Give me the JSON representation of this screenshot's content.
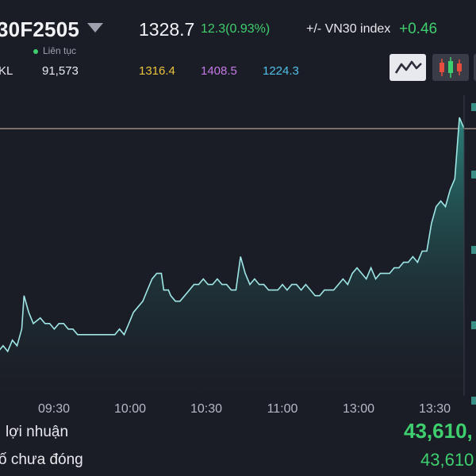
{
  "header": {
    "symbol": "30F2505",
    "last_price": "1328.7",
    "change": "12.3(0.93%)",
    "index_label": "+/- VN30 index",
    "index_change": "+0.46",
    "session": "Liên tục",
    "volume_label": "KL",
    "volume": "91,573",
    "reference": "1316.4",
    "ceiling": "1408.5",
    "floor": "1224.3"
  },
  "chart_type_buttons": [
    "line-chart-icon",
    "candlestick-chart-icon"
  ],
  "colors": {
    "up": "#3ecf6e",
    "reference": "#e8c33a",
    "ceiling": "#c579e6",
    "floor": "#4fc1e9",
    "line": "#9fe6e6",
    "background": "#1b1d26"
  },
  "chart_data": {
    "type": "area",
    "x_ticks": [
      "09:30",
      "10:00",
      "10:30",
      "11:00",
      "13:00",
      "13:30"
    ],
    "reference_line": 1328,
    "ylim": [
      1280,
      1334
    ],
    "x_range": [
      0,
      100
    ],
    "series": [
      {
        "values": [
          [
            0,
            1288
          ],
          [
            1,
            1289
          ],
          [
            2,
            1288
          ],
          [
            3,
            1290
          ],
          [
            4,
            1289
          ],
          [
            5,
            1292
          ],
          [
            5.5,
            1298
          ],
          [
            6.5,
            1295
          ],
          [
            7.5,
            1293
          ],
          [
            9,
            1294
          ],
          [
            10,
            1293
          ],
          [
            11,
            1293
          ],
          [
            12,
            1292
          ],
          [
            13,
            1293
          ],
          [
            14,
            1293
          ],
          [
            15,
            1292
          ],
          [
            16,
            1292
          ],
          [
            17,
            1291
          ],
          [
            18,
            1291
          ],
          [
            19,
            1291
          ],
          [
            20,
            1291
          ],
          [
            21,
            1291
          ],
          [
            22,
            1291
          ],
          [
            23,
            1291
          ],
          [
            24,
            1291
          ],
          [
            25,
            1291
          ],
          [
            26,
            1292
          ],
          [
            27,
            1291
          ],
          [
            28,
            1293
          ],
          [
            29,
            1295
          ],
          [
            30,
            1296
          ],
          [
            31,
            1297
          ],
          [
            32,
            1299
          ],
          [
            33,
            1301
          ],
          [
            34,
            1302
          ],
          [
            35,
            1302
          ],
          [
            35.5,
            1299
          ],
          [
            36.5,
            1299
          ],
          [
            37,
            1298
          ],
          [
            38,
            1297
          ],
          [
            39,
            1297
          ],
          [
            40,
            1298
          ],
          [
            41,
            1299
          ],
          [
            42,
            1300
          ],
          [
            43,
            1300
          ],
          [
            44,
            1301
          ],
          [
            45,
            1300
          ],
          [
            46,
            1300
          ],
          [
            47,
            1301
          ],
          [
            48,
            1300
          ],
          [
            49,
            1300
          ],
          [
            50,
            1299
          ],
          [
            51,
            1299
          ],
          [
            52,
            1305
          ],
          [
            53,
            1302
          ],
          [
            54,
            1300
          ],
          [
            55,
            1301
          ],
          [
            56,
            1300
          ],
          [
            57,
            1300
          ],
          [
            58,
            1299
          ],
          [
            59,
            1299
          ],
          [
            60,
            1299
          ],
          [
            61,
            1300
          ],
          [
            62,
            1299
          ],
          [
            63,
            1300
          ],
          [
            64,
            1300
          ],
          [
            65,
            1299
          ],
          [
            66,
            1300
          ],
          [
            67,
            1299
          ],
          [
            68,
            1298
          ],
          [
            69,
            1298
          ],
          [
            70,
            1299
          ],
          [
            71,
            1299
          ],
          [
            72,
            1299
          ],
          [
            73,
            1300
          ],
          [
            74,
            1301
          ],
          [
            75,
            1300
          ],
          [
            76,
            1302
          ],
          [
            77,
            1303
          ],
          [
            78,
            1302
          ],
          [
            79,
            1301
          ],
          [
            80,
            1303
          ],
          [
            81,
            1301
          ],
          [
            82,
            1302
          ],
          [
            83,
            1302
          ],
          [
            84,
            1302
          ],
          [
            85,
            1303
          ],
          [
            86,
            1303
          ],
          [
            87,
            1304
          ],
          [
            88,
            1304
          ],
          [
            89,
            1305
          ],
          [
            90,
            1304
          ],
          [
            91,
            1306
          ],
          [
            92,
            1306
          ],
          [
            93,
            1311
          ],
          [
            94,
            1314
          ],
          [
            95,
            1315
          ],
          [
            96,
            1314
          ],
          [
            97,
            1317
          ],
          [
            98,
            1319
          ],
          [
            99,
            1330
          ],
          [
            100,
            1328
          ]
        ]
      }
    ]
  },
  "summary": {
    "pnl_label": "lợi nhuận",
    "pnl_value": "43,610,",
    "open_label": "ố chưa đóng",
    "open_value": "43,610"
  }
}
